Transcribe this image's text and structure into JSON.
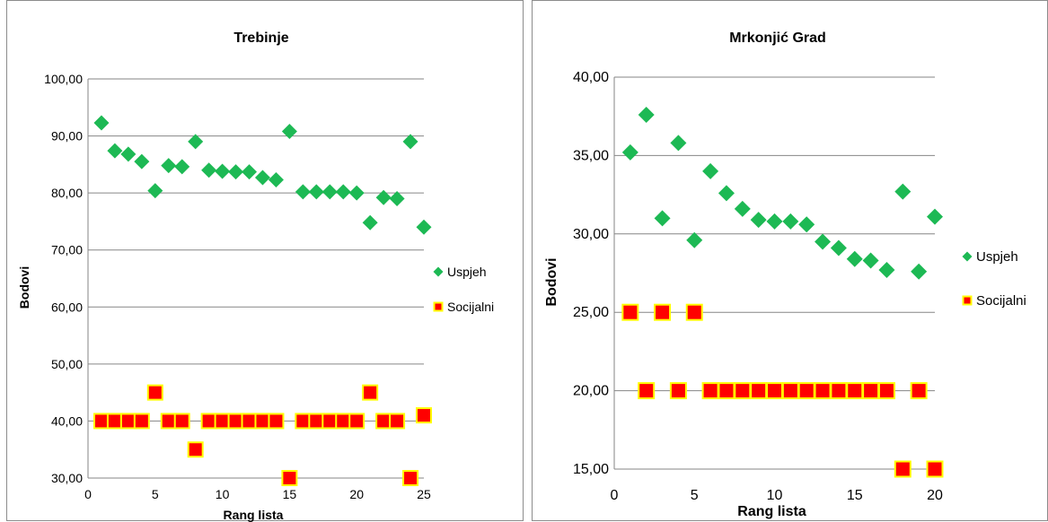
{
  "chart_data": [
    {
      "type": "scatter",
      "title": "Trebinje",
      "xlabel": "Rang lista",
      "ylabel": "Bodovi",
      "xlim": [
        0,
        25
      ],
      "ylim": [
        30,
        100
      ],
      "xticks": [
        "0",
        "5",
        "10",
        "15",
        "20",
        "25"
      ],
      "yticks": [
        "30,00",
        "40,00",
        "50,00",
        "60,00",
        "70,00",
        "80,00",
        "90,00",
        "100,00"
      ],
      "grid": true,
      "legend": "right",
      "series": [
        {
          "name": "Uspjeh",
          "color": "#1db954",
          "marker": "diamond",
          "x": [
            1,
            2,
            3,
            4,
            5,
            6,
            7,
            8,
            9,
            10,
            11,
            12,
            13,
            14,
            15,
            16,
            17,
            18,
            19,
            20,
            21,
            22,
            23,
            24,
            25
          ],
          "y": [
            92.3,
            87.4,
            86.8,
            85.5,
            80.4,
            84.8,
            84.6,
            89.0,
            84.0,
            83.8,
            83.7,
            83.7,
            82.7,
            82.3,
            90.8,
            80.2,
            80.2,
            80.2,
            80.2,
            80.0,
            74.8,
            79.2,
            79.0,
            89.0,
            74.0
          ]
        },
        {
          "name": "Socijalni",
          "color": "#ff0000",
          "border": "#ffff00",
          "marker": "square",
          "x": [
            1,
            2,
            3,
            4,
            5,
            6,
            7,
            8,
            9,
            10,
            11,
            12,
            13,
            14,
            15,
            16,
            17,
            18,
            19,
            20,
            21,
            22,
            23,
            24,
            25
          ],
          "y": [
            40,
            40,
            40,
            40,
            45,
            40,
            40,
            35,
            40,
            40,
            40,
            40,
            40,
            40,
            30,
            40,
            40,
            40,
            40,
            40,
            45,
            40,
            40,
            30,
            41
          ]
        }
      ]
    },
    {
      "type": "scatter",
      "title": "Mrkonjić Grad",
      "xlabel": "Rang lista",
      "ylabel": "Bodovi",
      "xlim": [
        0,
        20
      ],
      "ylim": [
        15,
        40
      ],
      "xticks": [
        "0",
        "5",
        "10",
        "15",
        "20"
      ],
      "yticks": [
        "15,00",
        "20,00",
        "25,00",
        "30,00",
        "35,00",
        "40,00"
      ],
      "grid": true,
      "legend": "right",
      "series": [
        {
          "name": "Uspjeh",
          "color": "#1db954",
          "marker": "diamond",
          "x": [
            1,
            2,
            3,
            4,
            5,
            6,
            7,
            8,
            9,
            10,
            11,
            12,
            13,
            14,
            15,
            16,
            17,
            18,
            19,
            20
          ],
          "y": [
            35.2,
            37.6,
            31.0,
            35.8,
            29.6,
            34.0,
            32.6,
            31.6,
            30.9,
            30.8,
            30.8,
            30.6,
            29.5,
            29.1,
            28.4,
            28.3,
            27.7,
            32.7,
            27.6,
            31.1
          ]
        },
        {
          "name": "Socijalni",
          "color": "#ff0000",
          "border": "#ffff00",
          "marker": "square",
          "x": [
            1,
            2,
            3,
            4,
            5,
            6,
            7,
            8,
            9,
            10,
            11,
            12,
            13,
            14,
            15,
            16,
            17,
            18,
            19,
            20
          ],
          "y": [
            25,
            20,
            25,
            20,
            25,
            20,
            20,
            20,
            20,
            20,
            20,
            20,
            20,
            20,
            20,
            20,
            20,
            15,
            20,
            15
          ]
        }
      ]
    }
  ]
}
